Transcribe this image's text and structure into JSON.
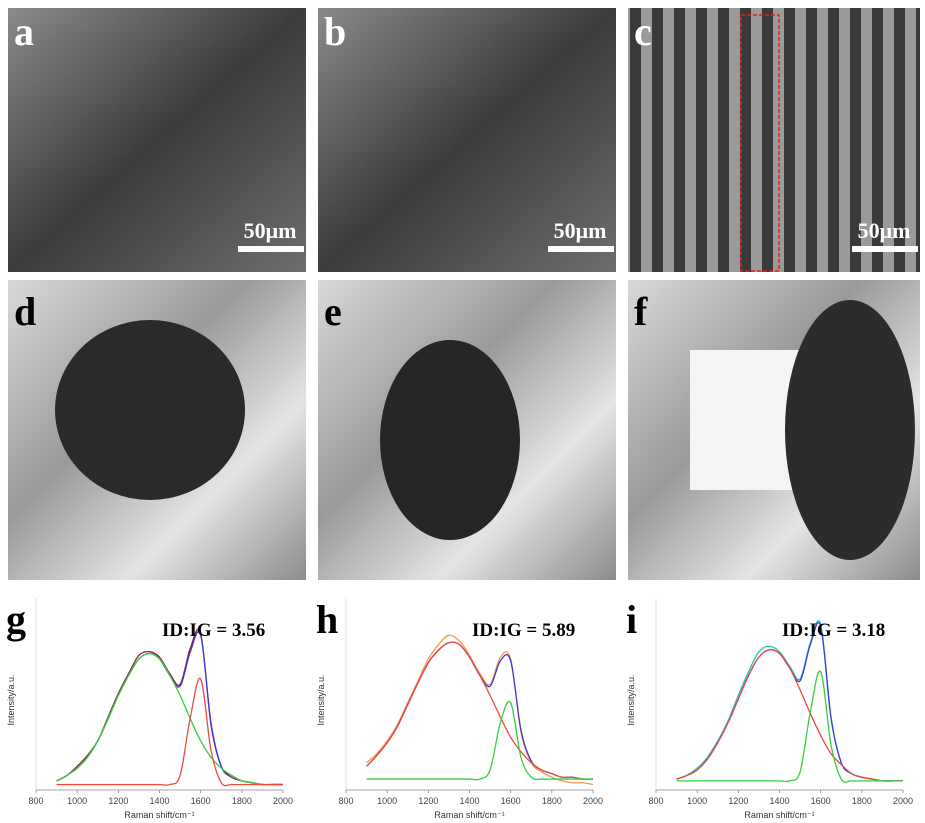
{
  "panels": [
    {
      "label": "a",
      "scale_bar": "50μm"
    },
    {
      "label": "b",
      "scale_bar": "50μm"
    },
    {
      "label": "c",
      "scale_bar": "50μm"
    },
    {
      "label": "d"
    },
    {
      "label": "e"
    },
    {
      "label": "f"
    }
  ],
  "chart_data": [
    {
      "type": "line",
      "panel_label": "g",
      "annotation": "ID:IG = 3.56",
      "x_label": "Raman shift/cm⁻¹",
      "y_label": "Intensity/a.u.",
      "x": [
        900,
        950,
        1000,
        1050,
        1100,
        1150,
        1200,
        1250,
        1300,
        1350,
        1400,
        1450,
        1500,
        1550,
        1600,
        1650,
        1700,
        1750,
        1800,
        1850,
        1900,
        1950,
        2000
      ],
      "xlim": [
        800,
        2000
      ],
      "xticks": [
        800,
        1000,
        1200,
        1400,
        1600,
        1800,
        2000
      ],
      "ylim": [
        0,
        1
      ],
      "series": [
        {
          "color": "#9b1b3a",
          "values": [
            0.05,
            0.08,
            0.13,
            0.19,
            0.27,
            0.4,
            0.53,
            0.64,
            0.74,
            0.76,
            0.73,
            0.64,
            0.58,
            0.78,
            0.86,
            0.36,
            0.13,
            0.07,
            0.05,
            0.04,
            0.03,
            0.03,
            0.03
          ]
        },
        {
          "color": "#3d3ad8",
          "values": [
            0.05,
            0.08,
            0.12,
            0.18,
            0.27,
            0.39,
            0.52,
            0.63,
            0.72,
            0.75,
            0.72,
            0.63,
            0.57,
            0.76,
            0.85,
            0.37,
            0.13,
            0.08,
            0.05,
            0.04,
            0.03,
            0.03,
            0.03
          ]
        },
        {
          "color": "#31d23a",
          "values": [
            0.05,
            0.08,
            0.12,
            0.18,
            0.27,
            0.39,
            0.52,
            0.63,
            0.72,
            0.75,
            0.72,
            0.63,
            0.52,
            0.39,
            0.27,
            0.18,
            0.12,
            0.08,
            0.05,
            0.04,
            0.03,
            0.03,
            0.03
          ]
        },
        {
          "color": "#ef4a3c",
          "values": [
            0.03,
            0.03,
            0.03,
            0.03,
            0.03,
            0.03,
            0.03,
            0.03,
            0.03,
            0.03,
            0.03,
            0.03,
            0.08,
            0.4,
            0.61,
            0.22,
            0.04,
            0.03,
            0.03,
            0.03,
            0.03,
            0.03,
            0.03
          ]
        }
      ]
    },
    {
      "type": "line",
      "panel_label": "h",
      "annotation": "ID:IG = 5.89",
      "x_label": "Raman shift/cm⁻¹",
      "y_label": "Intensity/a.u.",
      "x": [
        900,
        950,
        1000,
        1050,
        1100,
        1150,
        1200,
        1250,
        1300,
        1350,
        1400,
        1450,
        1500,
        1550,
        1600,
        1650,
        1700,
        1750,
        1800,
        1850,
        1900,
        1950,
        2000
      ],
      "xlim": [
        800,
        2000
      ],
      "xticks": [
        800,
        1000,
        1200,
        1400,
        1600,
        1800,
        2000
      ],
      "ylim": [
        0,
        1
      ],
      "series": [
        {
          "color": "#f59a4a",
          "values": [
            0.15,
            0.2,
            0.27,
            0.36,
            0.48,
            0.6,
            0.72,
            0.8,
            0.85,
            0.82,
            0.74,
            0.64,
            0.58,
            0.73,
            0.72,
            0.32,
            0.15,
            0.1,
            0.07,
            0.05,
            0.04,
            0.04,
            0.03
          ]
        },
        {
          "color": "#3d3ad8",
          "values": [
            0.13,
            0.19,
            0.26,
            0.35,
            0.47,
            0.59,
            0.7,
            0.77,
            0.81,
            0.8,
            0.73,
            0.63,
            0.57,
            0.71,
            0.71,
            0.33,
            0.16,
            0.11,
            0.09,
            0.07,
            0.07,
            0.06,
            0.06
          ]
        },
        {
          "color": "#ef4a3c",
          "values": [
            0.13,
            0.19,
            0.26,
            0.35,
            0.47,
            0.59,
            0.7,
            0.77,
            0.81,
            0.8,
            0.73,
            0.63,
            0.52,
            0.4,
            0.29,
            0.21,
            0.15,
            0.11,
            0.09,
            0.07,
            0.07,
            0.06,
            0.06
          ]
        },
        {
          "color": "#31d23a",
          "values": [
            0.06,
            0.06,
            0.06,
            0.06,
            0.06,
            0.06,
            0.06,
            0.06,
            0.06,
            0.06,
            0.06,
            0.06,
            0.11,
            0.37,
            0.48,
            0.18,
            0.07,
            0.06,
            0.06,
            0.06,
            0.06,
            0.06,
            0.06
          ]
        }
      ]
    },
    {
      "type": "line",
      "panel_label": "i",
      "annotation": "ID:IG = 3.18",
      "x_label": "Raman shift/cm⁻¹",
      "y_label": "Intensity/a.u.",
      "x": [
        900,
        950,
        1000,
        1050,
        1100,
        1150,
        1200,
        1250,
        1300,
        1350,
        1400,
        1450,
        1500,
        1550,
        1600,
        1650,
        1700,
        1750,
        1800,
        1850,
        1900,
        1950,
        2000
      ],
      "xlim": [
        800,
        2000
      ],
      "xticks": [
        800,
        1000,
        1200,
        1400,
        1600,
        1800,
        2000
      ],
      "ylim": [
        0,
        1
      ],
      "series": [
        {
          "color": "#19c9b0",
          "values": [
            0.06,
            0.08,
            0.12,
            0.18,
            0.27,
            0.38,
            0.52,
            0.65,
            0.76,
            0.79,
            0.76,
            0.68,
            0.61,
            0.81,
            0.91,
            0.4,
            0.15,
            0.09,
            0.07,
            0.06,
            0.05,
            0.05,
            0.05
          ]
        },
        {
          "color": "#3d3ad8",
          "values": [
            0.06,
            0.08,
            0.11,
            0.17,
            0.26,
            0.37,
            0.5,
            0.63,
            0.73,
            0.77,
            0.75,
            0.67,
            0.6,
            0.8,
            0.9,
            0.4,
            0.15,
            0.09,
            0.07,
            0.06,
            0.05,
            0.05,
            0.05
          ]
        },
        {
          "color": "#ef4a3c",
          "values": [
            0.06,
            0.08,
            0.11,
            0.17,
            0.26,
            0.37,
            0.5,
            0.63,
            0.73,
            0.77,
            0.75,
            0.67,
            0.55,
            0.42,
            0.3,
            0.2,
            0.14,
            0.09,
            0.07,
            0.06,
            0.05,
            0.05,
            0.05
          ]
        },
        {
          "color": "#31d23a",
          "values": [
            0.05,
            0.05,
            0.05,
            0.05,
            0.05,
            0.05,
            0.05,
            0.05,
            0.05,
            0.05,
            0.05,
            0.05,
            0.1,
            0.43,
            0.65,
            0.25,
            0.06,
            0.05,
            0.05,
            0.05,
            0.05,
            0.05,
            0.05
          ]
        }
      ]
    }
  ]
}
